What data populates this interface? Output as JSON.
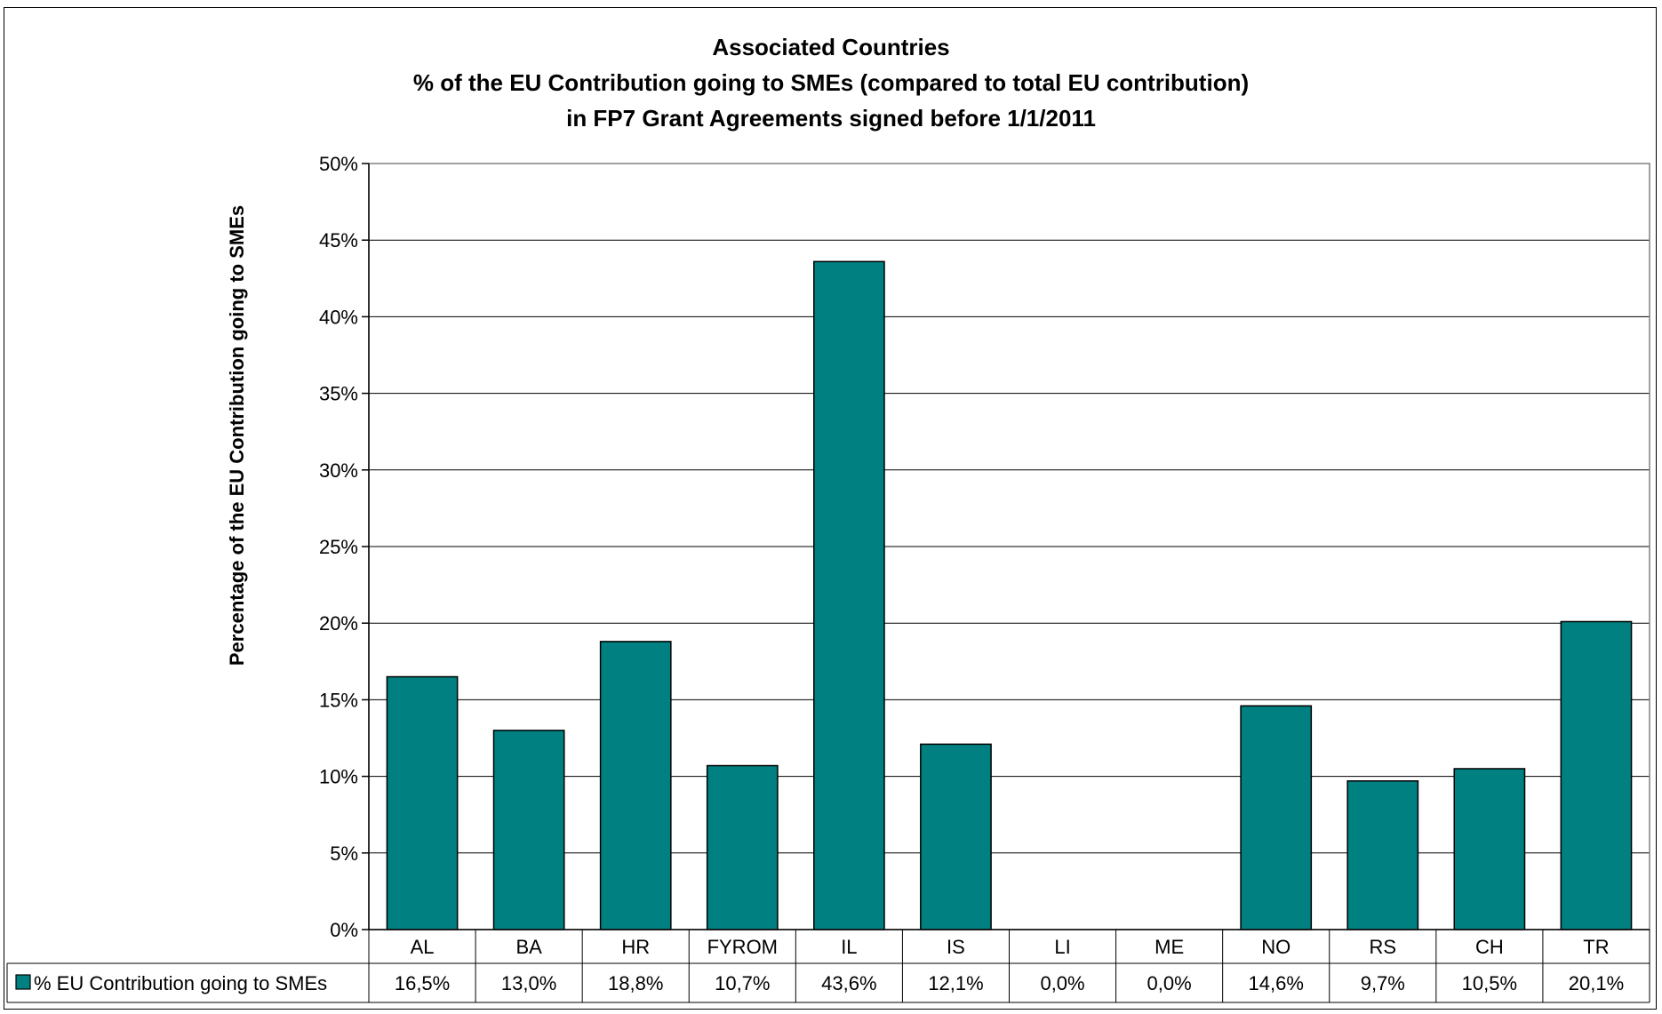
{
  "chart_data": {
    "type": "bar",
    "title_lines": [
      "Associated Countries",
      "% of the EU Contribution going to SMEs (compared to total EU contribution)",
      "in FP7 Grant Agreements signed before 1/1/2011"
    ],
    "ylabel": "Percentage of the EU Contribution going to SMEs",
    "xlabel": "",
    "categories": [
      "AL",
      "BA",
      "HR",
      "FYROM",
      "IL",
      "IS",
      "LI",
      "ME",
      "NO",
      "RS",
      "CH",
      "TR"
    ],
    "series": [
      {
        "name": "% EU Contribution going to SMEs",
        "values": [
          16.5,
          13.0,
          18.8,
          10.7,
          43.6,
          12.1,
          0.0,
          0.0,
          14.6,
          9.7,
          10.5,
          20.1
        ],
        "labels": [
          "16,5%",
          "13,0%",
          "18,8%",
          "10,7%",
          "43,6%",
          "12,1%",
          "0,0%",
          "0,0%",
          "14,6%",
          "9,7%",
          "10,5%",
          "20,1%"
        ],
        "color": "#008080"
      }
    ],
    "ylim": [
      0,
      50
    ],
    "yticks": [
      0,
      5,
      10,
      15,
      20,
      25,
      30,
      35,
      40,
      45,
      50
    ],
    "ytick_labels": [
      "0%",
      "5%",
      "10%",
      "15%",
      "20%",
      "25%",
      "30%",
      "35%",
      "40%",
      "45%",
      "50%"
    ],
    "grid": true,
    "legend": "data-table"
  }
}
